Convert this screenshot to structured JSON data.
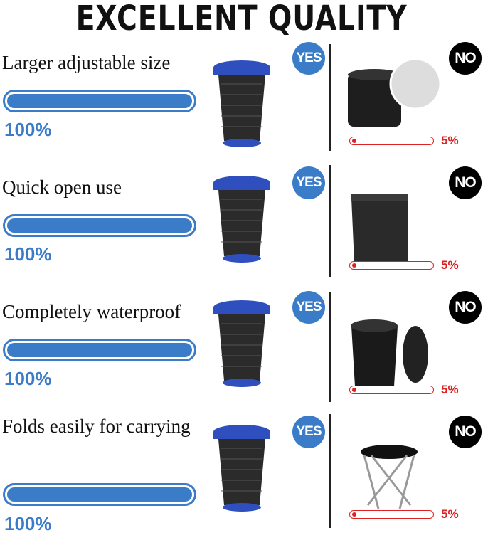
{
  "title": "EXCELLENT QUALITY",
  "colors": {
    "accent": "#3b7cc9",
    "negative": "#dd2222",
    "no_badge": "#000000"
  },
  "rows": [
    {
      "label": "Larger adjustable size",
      "ours_percent": "100%",
      "ours_value": 100,
      "yes": "YES",
      "no": "NO",
      "other_percent": "5%",
      "other_value": 5
    },
    {
      "label": "Quick open use",
      "ours_percent": "100%",
      "ours_value": 100,
      "yes": "YES",
      "no": "NO",
      "other_percent": "5%",
      "other_value": 5
    },
    {
      "label": "Completely waterproof",
      "ours_percent": "100%",
      "ours_value": 100,
      "yes": "YES",
      "no": "NO",
      "other_percent": "5%",
      "other_value": 5
    },
    {
      "label": "Folds easily for carrying",
      "ours_percent": "100%",
      "ours_value": 100,
      "yes": "YES",
      "no": "NO",
      "other_percent": "5%",
      "other_value": 5
    }
  ]
}
